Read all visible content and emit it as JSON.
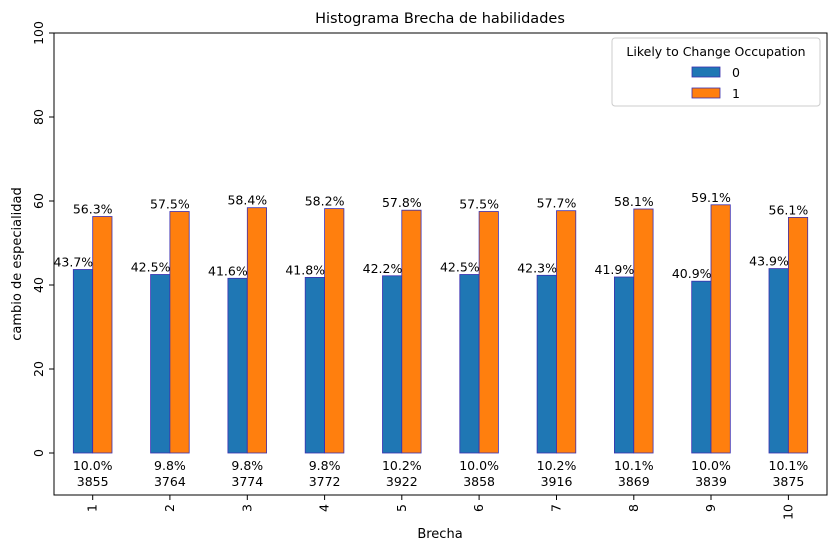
{
  "chart_data": {
    "type": "bar",
    "title": "Histograma Brecha de habilidades",
    "xlabel": "Brecha",
    "ylabel": "cambio de especialidad",
    "ylim": [
      -10,
      100
    ],
    "yticks": [
      0,
      20,
      40,
      60,
      80,
      100
    ],
    "categories": [
      "1",
      "2",
      "3",
      "4",
      "5",
      "6",
      "7",
      "8",
      "9",
      "10"
    ],
    "legend": {
      "title": "Likely to Change Occupation",
      "position": "top-right"
    },
    "series": [
      {
        "name": "0",
        "color": "#1f77b4",
        "values": [
          43.7,
          42.5,
          41.6,
          41.8,
          42.2,
          42.5,
          42.3,
          41.9,
          40.9,
          43.9
        ],
        "labels": [
          "43.7%",
          "42.5%",
          "41.6%",
          "41.8%",
          "42.2%",
          "42.5%",
          "42.3%",
          "41.9%",
          "40.9%",
          "43.9%"
        ]
      },
      {
        "name": "1",
        "color": "#ff7f0e",
        "values": [
          56.3,
          57.5,
          58.4,
          58.2,
          57.8,
          57.5,
          57.7,
          58.1,
          59.1,
          56.1
        ],
        "labels": [
          "56.3%",
          "57.5%",
          "58.4%",
          "58.2%",
          "57.8%",
          "57.5%",
          "57.7%",
          "58.1%",
          "59.1%",
          "56.1%"
        ]
      }
    ],
    "bar_edge_color": "#3b2fb0",
    "group_share": [
      "10.0%",
      "9.8%",
      "9.8%",
      "9.8%",
      "10.2%",
      "10.0%",
      "10.2%",
      "10.1%",
      "10.0%",
      "10.1%"
    ],
    "group_count": [
      "3855",
      "3764",
      "3774",
      "3772",
      "3922",
      "3858",
      "3916",
      "3869",
      "3839",
      "3875"
    ],
    "grid": false
  }
}
